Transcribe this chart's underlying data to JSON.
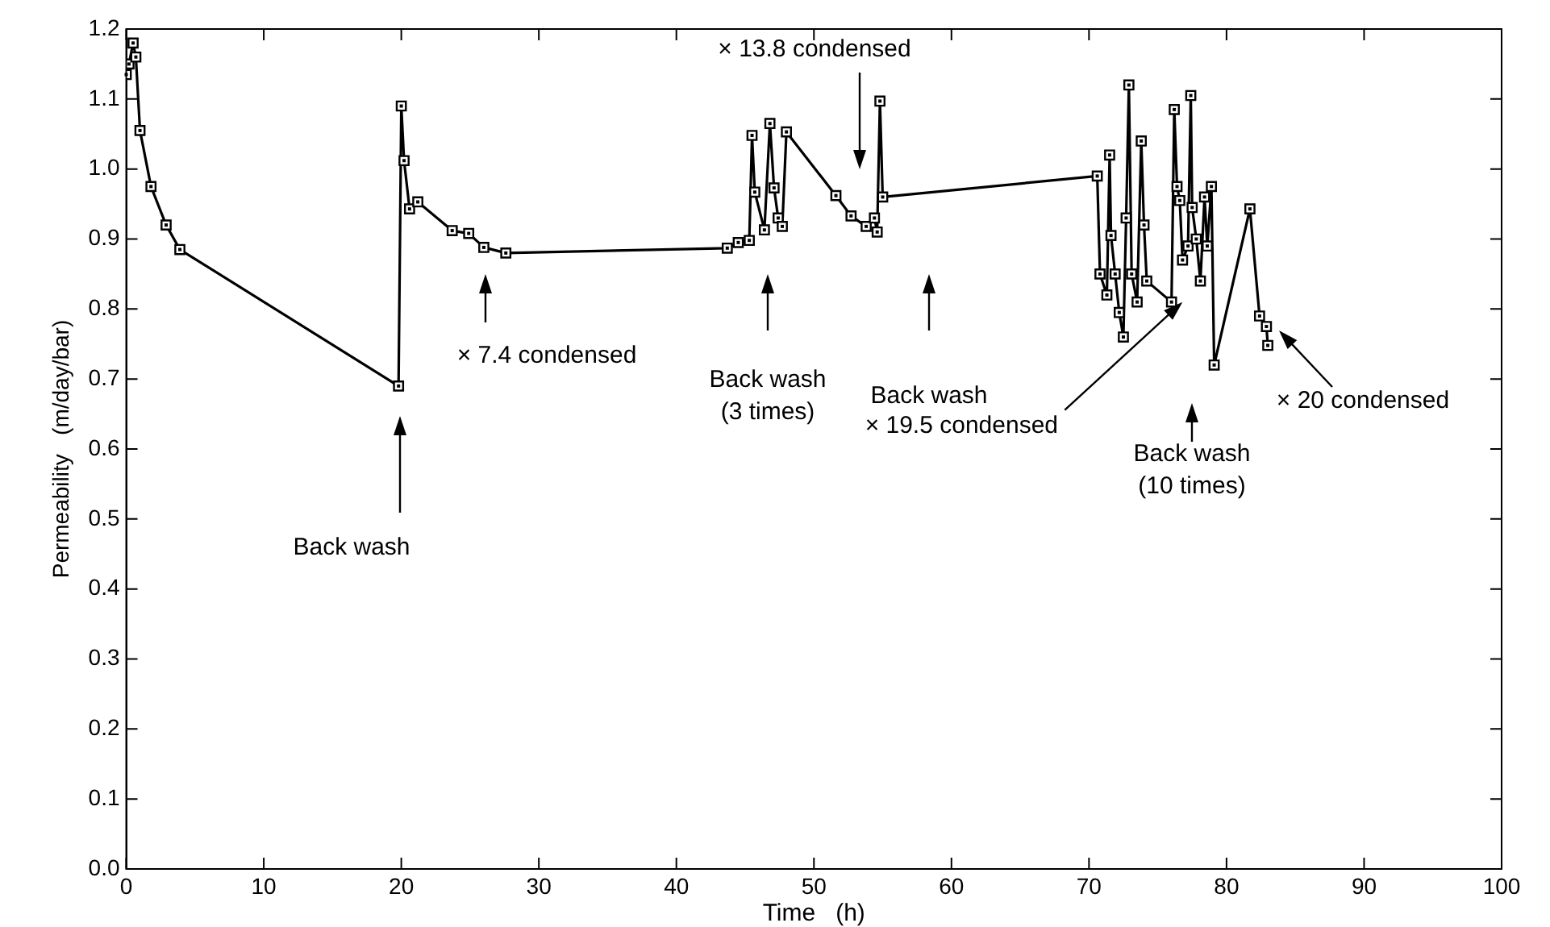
{
  "chart_data": {
    "type": "line",
    "xlabel": "Time   (h)",
    "ylabel": "Permeability   (m/day/bar)",
    "x": [
      0.0,
      0.2,
      0.5,
      0.7,
      1.0,
      1.8,
      2.9,
      3.9,
      19.8,
      20.0,
      20.2,
      20.6,
      21.2,
      23.7,
      24.9,
      26.0,
      27.6,
      43.7,
      44.5,
      45.3,
      45.5,
      45.7,
      46.4,
      46.8,
      47.1,
      47.4,
      47.7,
      48.0,
      51.6,
      52.7,
      53.8,
      54.4,
      54.6,
      54.8,
      55.0,
      70.6,
      70.8,
      71.3,
      71.5,
      71.6,
      71.9,
      72.2,
      72.5,
      72.7,
      72.9,
      73.1,
      73.5,
      73.8,
      74.0,
      74.2,
      76.0,
      76.2,
      76.4,
      76.6,
      76.8,
      77.2,
      77.4,
      77.5,
      77.8,
      78.1,
      78.4,
      78.6,
      78.9,
      79.1,
      81.7,
      82.4,
      82.9,
      83.0
    ],
    "series": [
      {
        "color": "#000000",
        "values": [
          1.135,
          1.15,
          1.18,
          1.16,
          1.055,
          0.975,
          0.92,
          0.885,
          0.69,
          1.09,
          1.012,
          0.943,
          0.953,
          0.912,
          0.908,
          0.888,
          0.88,
          0.887,
          0.895,
          0.898,
          1.048,
          0.967,
          0.913,
          1.065,
          0.973,
          0.93,
          0.918,
          1.053,
          0.962,
          0.933,
          0.918,
          0.93,
          0.91,
          1.097,
          0.96,
          0.99,
          0.85,
          0.82,
          1.02,
          0.905,
          0.85,
          0.795,
          0.76,
          0.93,
          1.12,
          0.85,
          0.81,
          1.04,
          0.92,
          0.84,
          0.81,
          1.085,
          0.975,
          0.955,
          0.87,
          0.89,
          1.105,
          0.945,
          0.9,
          0.84,
          0.96,
          0.89,
          0.975,
          0.72,
          0.943,
          0.79,
          0.775,
          0.748
        ]
      }
    ],
    "xlim": [
      0,
      100
    ],
    "xticks": [
      0,
      10,
      20,
      30,
      40,
      50,
      60,
      70,
      80,
      90,
      100
    ],
    "ylim": [
      0,
      1.2
    ],
    "yticks": [
      {
        "value": 0,
        "label": "0.0"
      },
      {
        "value": 0.1,
        "label": "0.1"
      },
      {
        "value": 0.2,
        "label": "0.2"
      },
      {
        "value": 0.3,
        "label": "0.3"
      },
      {
        "value": 0.4,
        "label": "0.4"
      },
      {
        "value": 0.5,
        "label": "0.5"
      },
      {
        "value": 0.6,
        "label": "0.6"
      },
      {
        "value": 0.7,
        "label": "0.7"
      },
      {
        "value": 0.8,
        "label": "0.8"
      },
      {
        "value": 0.9,
        "label": "0.9"
      },
      {
        "value": 1.0,
        "label": "1.0"
      },
      {
        "value": 1.1,
        "label": "1.1"
      },
      {
        "value": 1.2,
        "label": "1.2"
      }
    ],
    "grid": false,
    "legend": false,
    "marker": "square",
    "line_style": "solid",
    "annotations": [
      "Back wash",
      "× 7.4 condensed",
      "Back wash\n(3 times)",
      "Back wash",
      "× 13.8 condensed",
      {
        "text": "× 19.5 condensed",
        "x": 76.8,
        "y": 0.81
      },
      "Back wash\n(10 times)",
      "× 20 condensed"
    ]
  }
}
